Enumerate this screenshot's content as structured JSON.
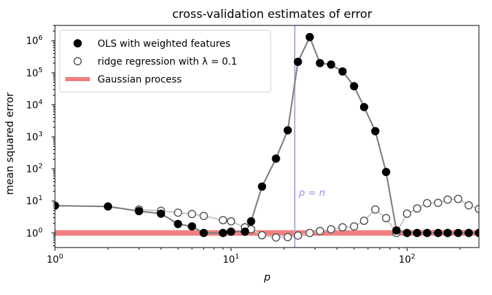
{
  "chart_data": {
    "type": "scatter",
    "title": "cross-validation estimates of error",
    "xlabel": "p",
    "ylabel": "mean squared error",
    "xscale": "log",
    "yscale": "log",
    "xlim": [
      1,
      256
    ],
    "ylim": [
      0.35,
      3000000
    ],
    "x_ticks": [
      {
        "value": 1,
        "base": "10",
        "exp": "0"
      },
      {
        "value": 10,
        "base": "10",
        "exp": "1"
      },
      {
        "value": 100,
        "base": "10",
        "exp": "2"
      }
    ],
    "y_ticks": [
      {
        "value": 1,
        "base": "10",
        "exp": "0"
      },
      {
        "value": 10,
        "base": "10",
        "exp": "1"
      },
      {
        "value": 100,
        "base": "10",
        "exp": "2"
      },
      {
        "value": 1000,
        "base": "10",
        "exp": "3"
      },
      {
        "value": 10000,
        "base": "10",
        "exp": "4"
      },
      {
        "value": 100000,
        "base": "10",
        "exp": "5"
      },
      {
        "value": 1000000,
        "base": "10",
        "exp": "6"
      }
    ],
    "legend_position": "top-left",
    "series": [
      {
        "name": "OLS with weighted features",
        "marker": "filled-circle",
        "color": "#000000",
        "line_color": "#808080",
        "points": [
          [
            1,
            7.1
          ],
          [
            2,
            6.7
          ],
          [
            3,
            4.8
          ],
          [
            4,
            4.0
          ],
          [
            5,
            1.9
          ],
          [
            6,
            1.6
          ],
          [
            7,
            1.0
          ],
          [
            9,
            1.0
          ],
          [
            10,
            1.1
          ],
          [
            12,
            1.1
          ],
          [
            13,
            2.3
          ],
          [
            15,
            28
          ],
          [
            18,
            210
          ],
          [
            21,
            1600
          ],
          [
            24,
            220000
          ],
          [
            28,
            1300000
          ],
          [
            32,
            200000
          ],
          [
            37,
            180000
          ],
          [
            43,
            110000
          ],
          [
            50,
            38000
          ],
          [
            57,
            8500
          ],
          [
            66,
            1500
          ],
          [
            76,
            80
          ],
          [
            87,
            1.2
          ],
          [
            100,
            1.0
          ],
          [
            114,
            1.0
          ],
          [
            130,
            1.0
          ],
          [
            150,
            1.0
          ],
          [
            170,
            1.0
          ],
          [
            195,
            1.0
          ],
          [
            224,
            1.0
          ],
          [
            256,
            1.0
          ]
        ]
      },
      {
        "name": "ridge regression with λ = 0.1",
        "marker": "open-circle",
        "color": "#555555",
        "line_color": "#c8c8c8",
        "points": [
          [
            3,
            5.4
          ],
          [
            4,
            4.9
          ],
          [
            5,
            4.3
          ],
          [
            6,
            3.9
          ],
          [
            7,
            3.4
          ],
          [
            9,
            2.5
          ],
          [
            10,
            2.3
          ],
          [
            12,
            1.5
          ],
          [
            13,
            1.3
          ],
          [
            15,
            0.85
          ],
          [
            18,
            0.72
          ],
          [
            21,
            0.74
          ],
          [
            24,
            0.83
          ],
          [
            28,
            1.0
          ],
          [
            32,
            1.15
          ],
          [
            37,
            1.3
          ],
          [
            43,
            1.5
          ],
          [
            50,
            1.6
          ],
          [
            57,
            2.4
          ],
          [
            66,
            5.4
          ],
          [
            76,
            2.9
          ],
          [
            87,
            1.0
          ],
          [
            100,
            4.0
          ],
          [
            114,
            5.8
          ],
          [
            130,
            8.5
          ],
          [
            150,
            8.7
          ],
          [
            170,
            11.0
          ],
          [
            195,
            11.5
          ],
          [
            224,
            7.3
          ],
          [
            256,
            5.6
          ]
        ]
      },
      {
        "name": "Gaussian process",
        "type": "hline",
        "color": "#f08080",
        "value": 1.0
      }
    ],
    "annotations": [
      {
        "type": "vline",
        "x": 23,
        "color": "#a9acf0",
        "label_lhs": "p",
        "label_eq": " = ",
        "label_rhs": "n"
      }
    ]
  }
}
